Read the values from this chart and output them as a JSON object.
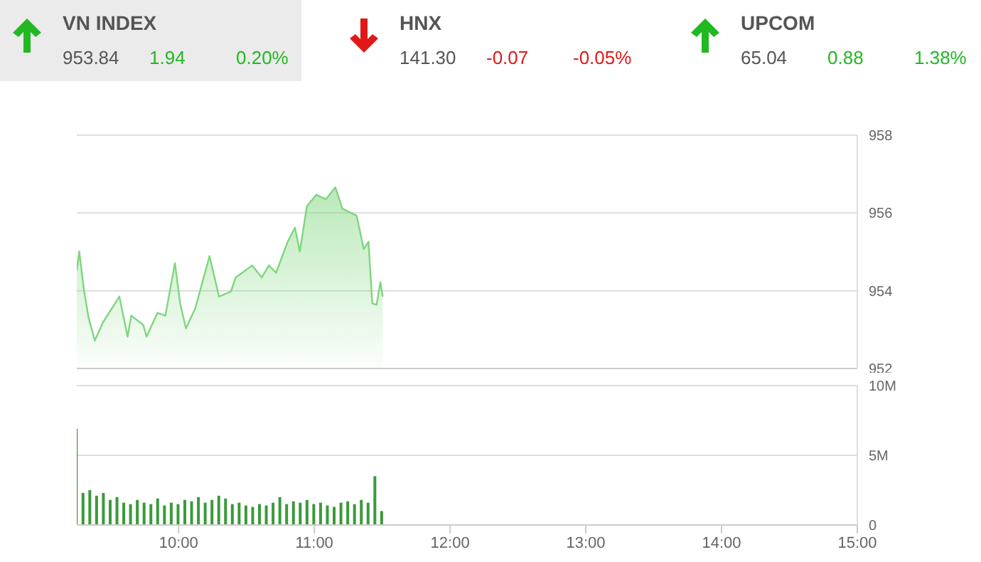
{
  "chart_data": [
    {
      "type": "other",
      "categories": [
        "VN INDEX",
        "HNX",
        "UPCOM"
      ],
      "colors": [
        "#22b822",
        "#e01818",
        "#22b822"
      ],
      "value_labels": [
        "1.94",
        "-0.07",
        "0.88"
      ],
      "annotations": [
        "953.84",
        "0.20%",
        "141.30",
        "-0.05%",
        "65.04",
        "1.38%"
      ]
    },
    {
      "type": "area",
      "x": [
        9.25,
        9.268,
        9.302,
        9.337,
        9.383,
        9.442,
        9.564,
        9.624,
        9.651,
        9.74,
        9.764,
        9.844,
        9.903,
        9.973,
        10.012,
        10.054,
        10.123,
        10.228,
        10.298,
        10.385,
        10.421,
        10.542,
        10.613,
        10.665,
        10.718,
        10.804,
        10.857,
        10.893,
        10.945,
        11.014,
        11.084,
        11.155,
        11.207,
        11.312,
        11.364,
        11.399,
        11.427,
        11.459,
        11.486,
        11.504
      ],
      "series": [
        {
          "color": "#7ed67e",
          "values": [
            954.52,
            955.01,
            954.04,
            953.3,
            952.72,
            953.18,
            953.85,
            952.82,
            953.36,
            953.12,
            952.82,
            953.43,
            953.36,
            954.71,
            953.67,
            953.03,
            953.55,
            954.89,
            953.85,
            953.98,
            954.34,
            954.65,
            954.34,
            954.65,
            954.46,
            955.26,
            955.62,
            955.01,
            956.17,
            956.47,
            956.35,
            956.66,
            956.11,
            955.93,
            955.07,
            955.26,
            953.67,
            953.64,
            954.22,
            953.85
          ]
        }
      ],
      "xlim": [
        9.25,
        15
      ],
      "ylim": [
        952,
        958
      ],
      "yticks": [
        952,
        954,
        956,
        958
      ],
      "grid": "y",
      "tick_labels": "y"
    },
    {
      "type": "bar",
      "x": [
        9.25,
        9.3,
        9.35,
        9.4,
        9.45,
        9.5,
        9.55,
        9.6,
        9.65,
        9.7,
        9.75,
        9.8,
        9.85,
        9.9,
        9.95,
        10.0,
        10.05,
        10.1,
        10.15,
        10.2,
        10.25,
        10.3,
        10.35,
        10.4,
        10.45,
        10.5,
        10.55,
        10.6,
        10.65,
        10.7,
        10.75,
        10.8,
        10.85,
        10.9,
        10.95,
        11.0,
        11.05,
        11.1,
        11.15,
        11.2,
        11.25,
        11.3,
        11.35,
        11.4,
        11.45,
        11.5
      ],
      "series": [
        {
          "color": "#3a9a3a",
          "values": [
            6.9,
            2.3,
            2.5,
            2.1,
            2.3,
            1.8,
            2.0,
            1.6,
            1.5,
            1.8,
            1.6,
            1.5,
            1.9,
            1.4,
            1.6,
            1.5,
            1.8,
            1.7,
            2.0,
            1.6,
            1.8,
            2.1,
            1.9,
            1.5,
            1.6,
            1.4,
            1.3,
            1.5,
            1.4,
            1.6,
            2.0,
            1.5,
            1.7,
            1.6,
            1.8,
            1.5,
            1.6,
            1.4,
            1.3,
            1.6,
            1.7,
            1.5,
            1.8,
            1.6,
            3.5,
            1.0
          ]
        }
      ],
      "xlim": [
        9.25,
        15
      ],
      "xticks": [
        {
          "value": 10,
          "label": "10:00"
        },
        {
          "value": 11,
          "label": "11:00"
        },
        {
          "value": 12,
          "label": "12:00"
        },
        {
          "value": 13,
          "label": "13:00"
        },
        {
          "value": 14,
          "label": "14:00"
        },
        {
          "value": 15,
          "label": "15:00"
        }
      ],
      "ylim": [
        0,
        10
      ],
      "yticks": [
        0,
        {
          "value": 5,
          "label": "5M"
        },
        {
          "value": 10,
          "label": "10M"
        }
      ],
      "grid": "y"
    }
  ]
}
